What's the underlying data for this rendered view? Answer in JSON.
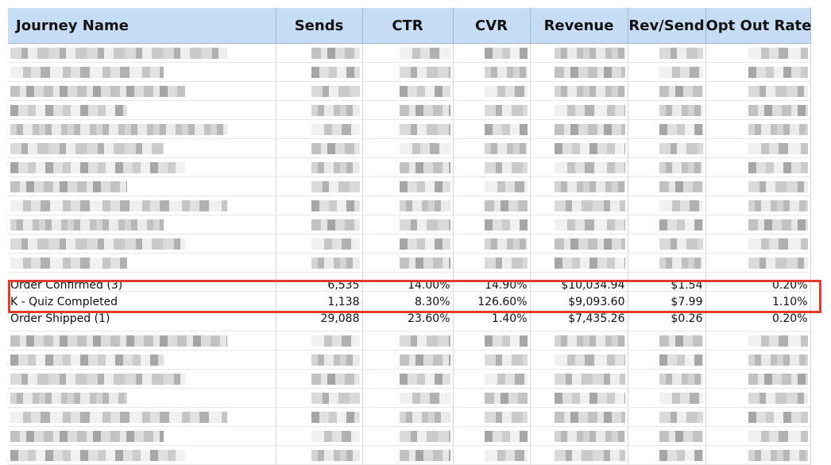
{
  "table": {
    "headers": [
      "Journey Name",
      "Sends",
      "CTR",
      "CVR",
      "Revenue",
      "Rev/Send",
      "Opt Out Rate"
    ],
    "visible_rows": {
      "above": {
        "journey_name": "Order Confirmed (3)",
        "sends": "6,535",
        "ctr": "14.00%",
        "cvr": "14.90%",
        "revenue": "$10,034.94",
        "rev_send": "$1.54",
        "opt_out_rate": "0.20%"
      },
      "highlighted": {
        "journey_name": "K - Quiz Completed",
        "sends": "1,138",
        "ctr": "8.30%",
        "cvr": "126.60%",
        "revenue": "$9,093.60",
        "rev_send": "$7.99",
        "opt_out_rate": "1.10%"
      },
      "below": {
        "journey_name": "Order Shipped (1)",
        "sends": "29,088",
        "ctr": "23.60%",
        "cvr": "1.40%",
        "revenue": "$7,435.26",
        "rev_send": "$0.26",
        "opt_out_rate": "0.20%"
      }
    }
  },
  "colors": {
    "header_bg": "#c7ddf6",
    "highlight_border": "#e53b2b",
    "grid_line": "#d4d4d4"
  }
}
